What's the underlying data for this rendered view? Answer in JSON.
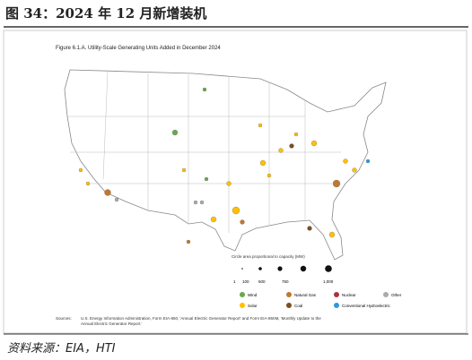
{
  "header": {
    "title": "图 34：2024 年 12 月新增装机"
  },
  "figure": {
    "title": "Figure 6.1.A. Utility-Scale Generating Units Added in December 2024",
    "size_legend": {
      "title": "Circle area proportional to capacity (MW)",
      "labels": [
        "1",
        "100",
        "500",
        "750",
        "1,000"
      ]
    },
    "legend": [
      "Wind",
      "Natural Gas",
      "Nuclear",
      "Other",
      "Solar",
      "Coal",
      "Conventional Hydroelectric"
    ],
    "sources": {
      "label": "Sources:",
      "text": [
        "U.S. Energy Information Administration, Form EIA-860, 'Annual Electric Generator Report' and Form EIA-860M, 'Monthly Update to the",
        "Annual Electric Generator Report.'"
      ]
    }
  },
  "footer": {
    "source": "资料来源：EIA，HTI"
  }
}
